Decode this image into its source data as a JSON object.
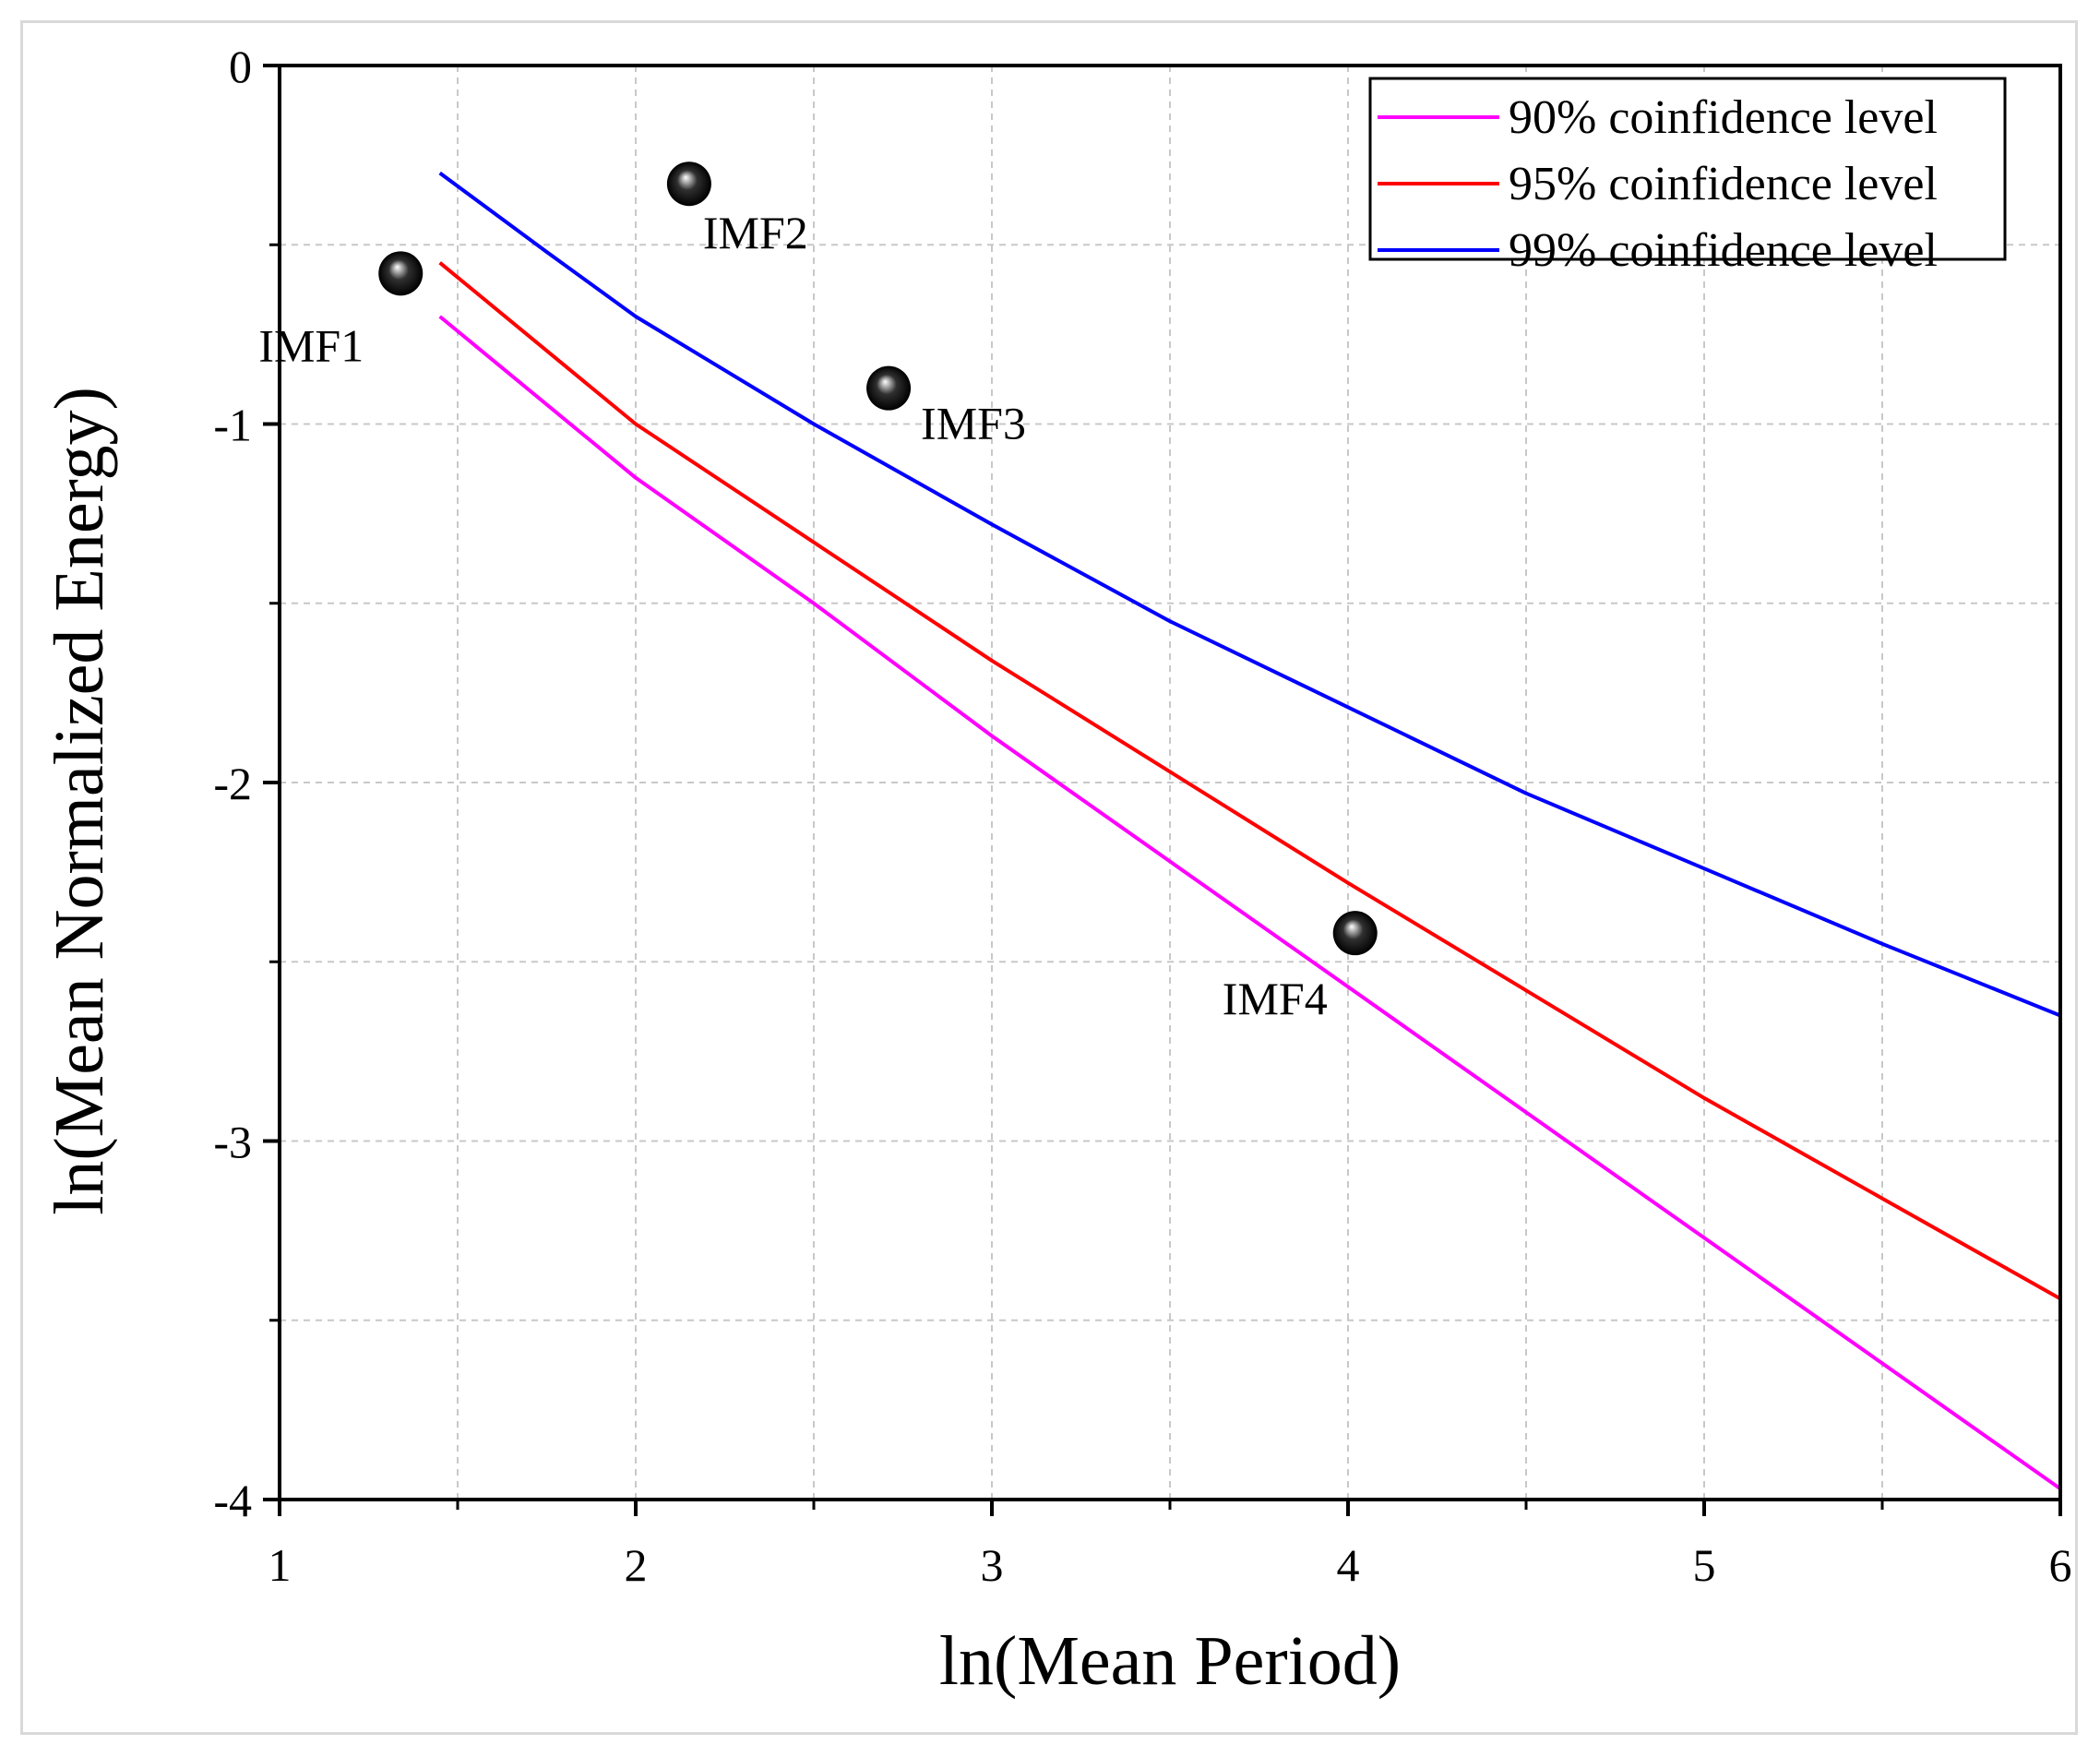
{
  "chart_data": {
    "type": "scatter",
    "xlabel": "ln(Mean Period)",
    "ylabel": "ln(Mean Normalized Energy)",
    "xlim": [
      1,
      6
    ],
    "ylim": [
      -4,
      0
    ],
    "x_ticks": [
      "1",
      "2",
      "3",
      "4",
      "5",
      "6"
    ],
    "y_ticks": [
      "0",
      "-1",
      "-2",
      "-3",
      "-4"
    ],
    "grid": true,
    "legend_position": "top-right",
    "series": [
      {
        "name": "90% coinfidence level",
        "type": "line",
        "color": "#ff00ff",
        "x": [
          1.45,
          2.0,
          2.5,
          3.0,
          3.5,
          4.0,
          4.5,
          5.0,
          5.5,
          6.0
        ],
        "y": [
          -0.7,
          -1.15,
          -1.5,
          -1.87,
          -2.22,
          -2.57,
          -2.92,
          -3.27,
          -3.62,
          -3.97
        ]
      },
      {
        "name": "95% coinfidence level",
        "type": "line",
        "color": "#ff0000",
        "x": [
          1.45,
          2.0,
          2.5,
          3.0,
          3.5,
          4.0,
          4.5,
          5.0,
          5.5,
          6.0
        ],
        "y": [
          -0.55,
          -1.0,
          -1.33,
          -1.66,
          -1.97,
          -2.28,
          -2.58,
          -2.88,
          -3.16,
          -3.44
        ]
      },
      {
        "name": "99% coinfidence level",
        "type": "line",
        "color": "#0000ff",
        "x": [
          1.45,
          1.75,
          2.0,
          2.5,
          3.0,
          3.5,
          4.0,
          4.5,
          5.0,
          5.5,
          6.0
        ],
        "y": [
          -0.3,
          -0.52,
          -0.7,
          -1.0,
          -1.28,
          -1.55,
          -1.79,
          -2.03,
          -2.24,
          -2.45,
          -2.65
        ]
      },
      {
        "type": "scatter",
        "color": "#000000",
        "points": [
          {
            "label": "IMF1",
            "x": 1.34,
            "y": -0.58
          },
          {
            "label": "IMF2",
            "x": 2.15,
            "y": -0.33
          },
          {
            "label": "IMF3",
            "x": 2.71,
            "y": -0.9
          },
          {
            "label": "IMF4",
            "x": 4.02,
            "y": -2.42
          }
        ]
      }
    ]
  }
}
